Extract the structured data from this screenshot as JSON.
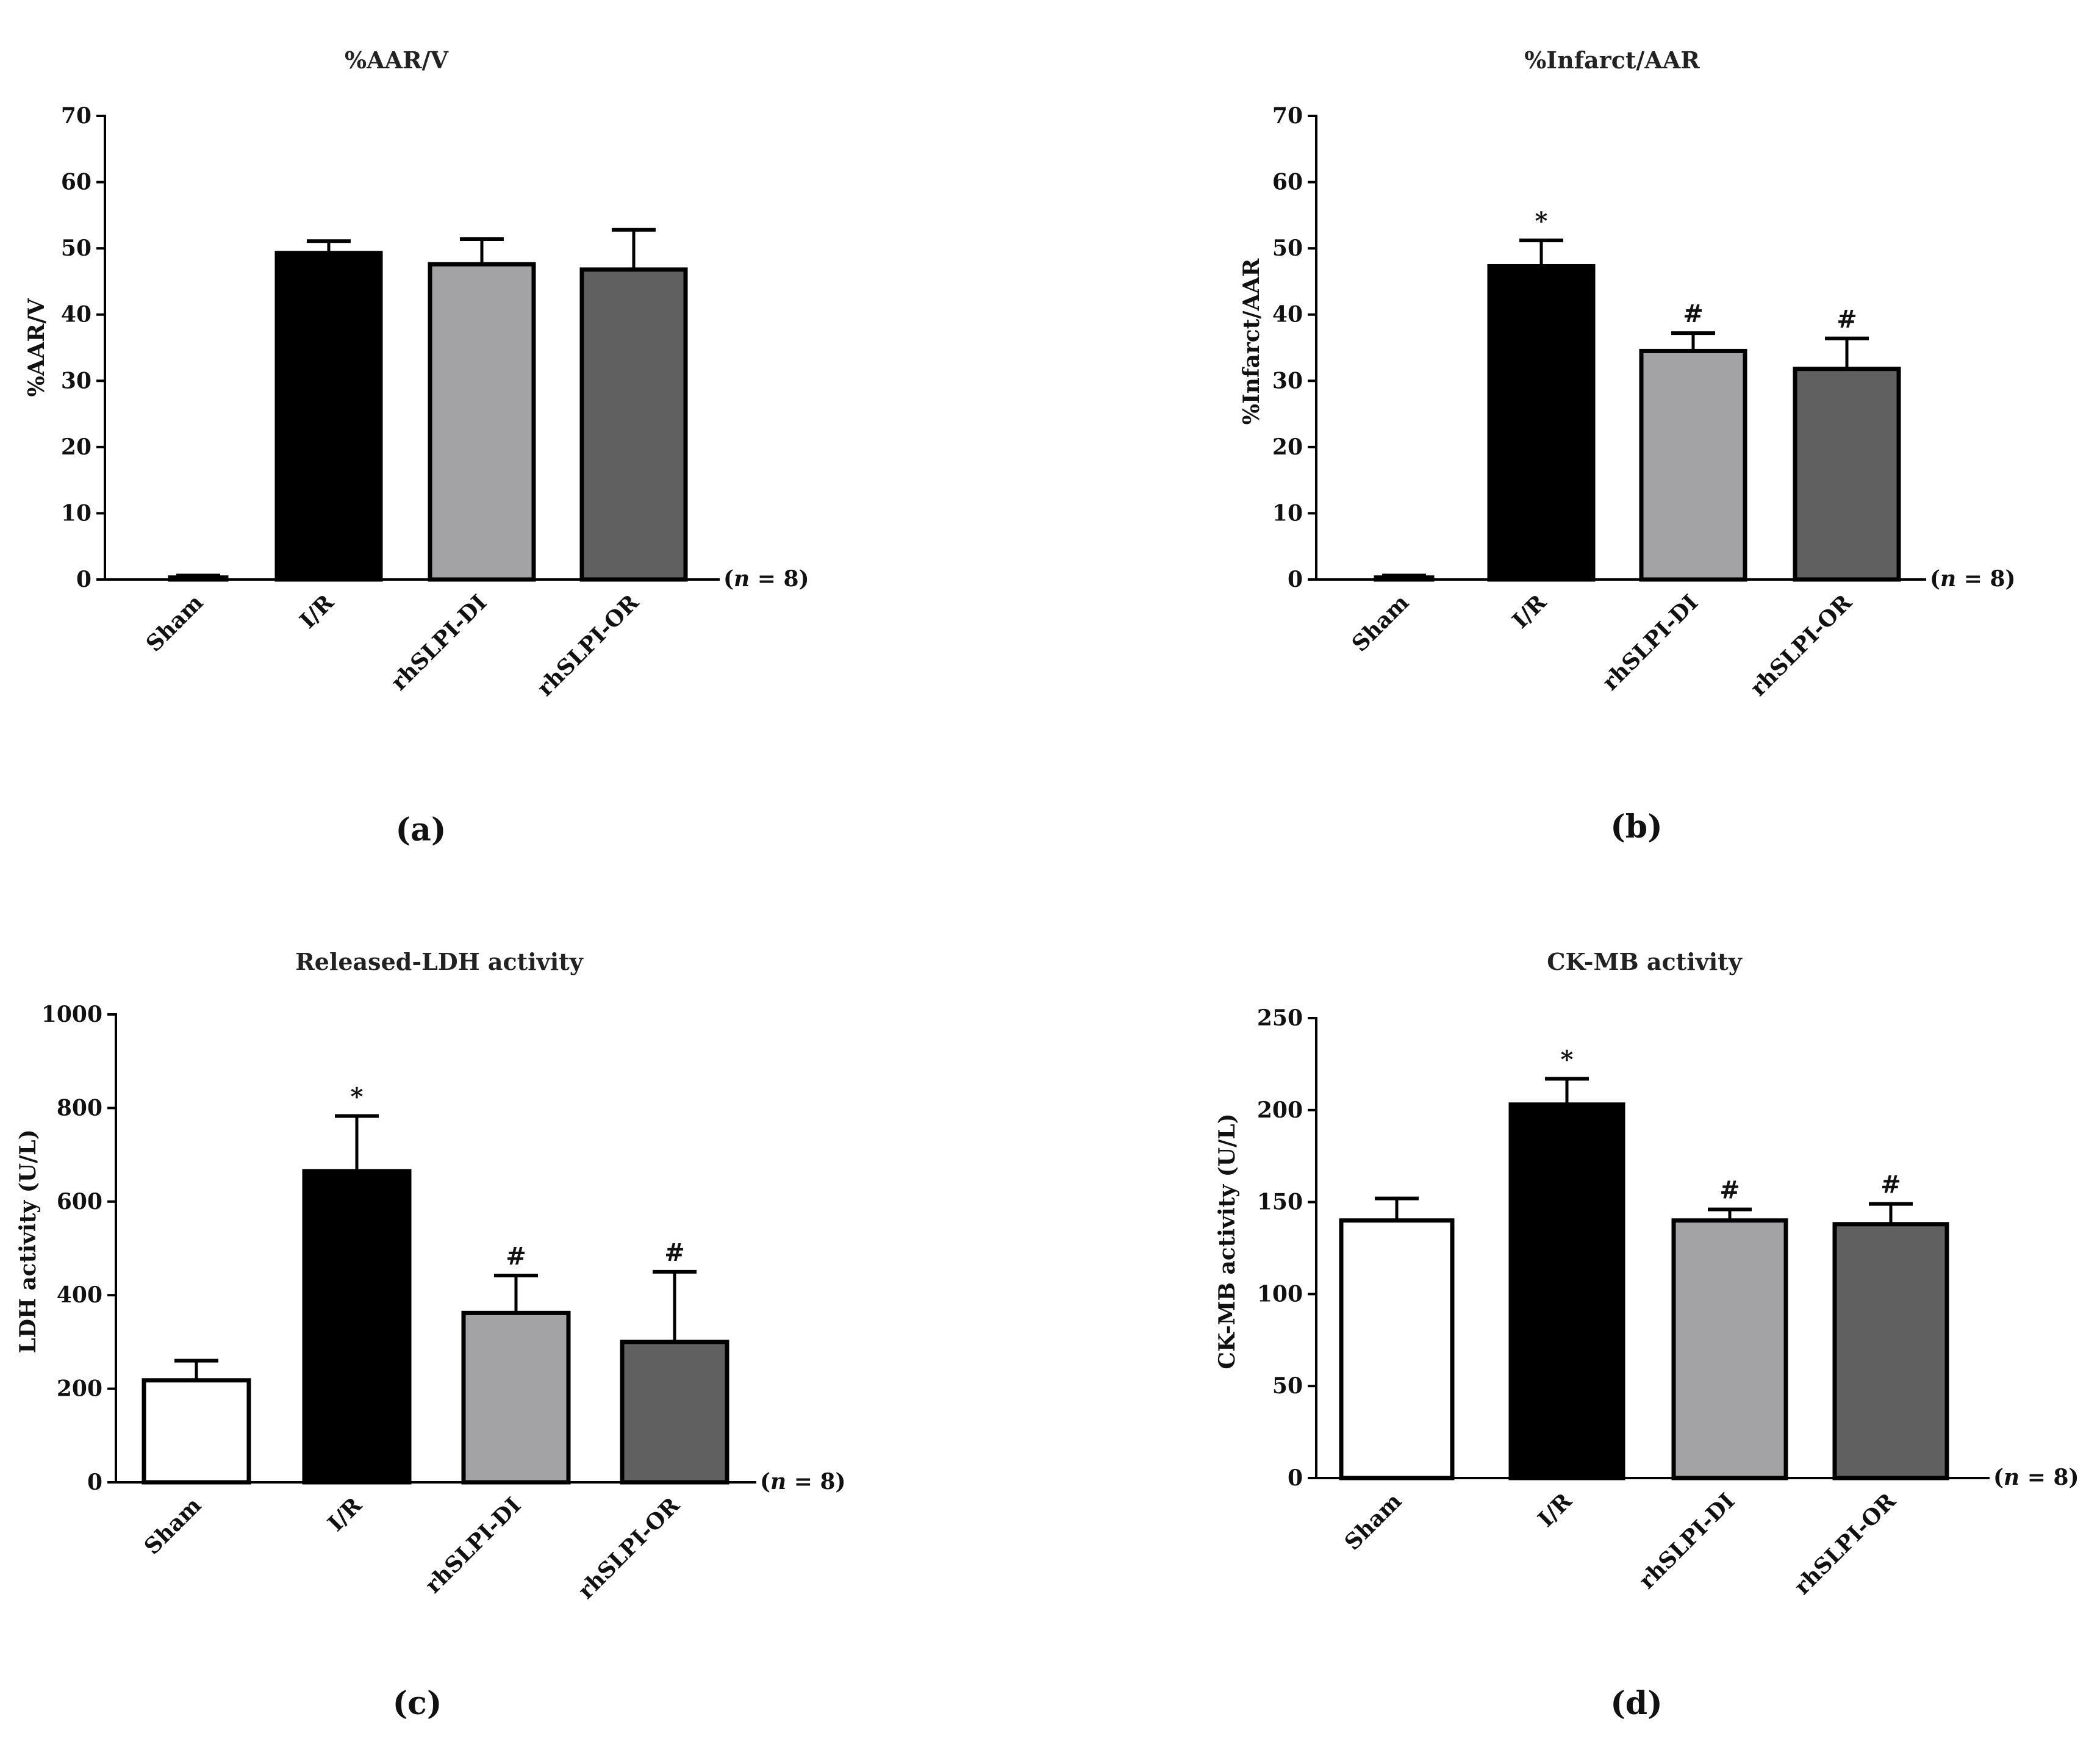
{
  "chart_data": [
    {
      "type": "bar",
      "panel_label": "(a)",
      "title": "%AAR/V",
      "ylabel": "%AAR/V",
      "xlabel": "",
      "n_label": "(n = 8)",
      "ylim": [
        0,
        70
      ],
      "yticks": [
        0,
        10,
        20,
        30,
        40,
        50,
        60,
        70
      ],
      "categories": [
        "Sham",
        "I/R",
        "rhSLPI-DI",
        "rhSLPI-OR"
      ],
      "values": [
        0.3,
        49.3,
        47.6,
        46.8
      ],
      "errors": [
        0.3,
        1.8,
        3.8,
        6.0
      ],
      "significance": [
        "",
        "",
        "",
        ""
      ],
      "colors": [
        "#ffffff",
        "#000000",
        "#a3a3a6",
        "#606060"
      ]
    },
    {
      "type": "bar",
      "panel_label": "(b)",
      "title": "%Infarct/AAR",
      "ylabel": "%Infarct/AAR",
      "xlabel": "",
      "n_label": "(n = 8)",
      "ylim": [
        0,
        70
      ],
      "yticks": [
        0,
        10,
        20,
        30,
        40,
        50,
        60,
        70
      ],
      "categories": [
        "Sham",
        "I/R",
        "rhSLPI-DI",
        "rhSLPI-OR"
      ],
      "values": [
        0.3,
        47.3,
        34.5,
        31.8
      ],
      "errors": [
        0.3,
        3.9,
        2.7,
        4.6
      ],
      "significance": [
        "",
        "*",
        "#",
        "#"
      ],
      "colors": [
        "#ffffff",
        "#000000",
        "#a3a3a6",
        "#606060"
      ]
    },
    {
      "type": "bar",
      "panel_label": "(c)",
      "title": "Released-LDH activity",
      "ylabel": "LDH activity (U/L)",
      "xlabel": "",
      "n_label": "(n = 8)",
      "ylim": [
        0,
        1000
      ],
      "yticks": [
        0,
        200,
        400,
        600,
        800,
        1000
      ],
      "categories": [
        "Sham",
        "I/R",
        "rhSLPI-DI",
        "rhSLPI-OR"
      ],
      "values": [
        218,
        665,
        362,
        300
      ],
      "errors": [
        42,
        118,
        80,
        150
      ],
      "significance": [
        "",
        "*",
        "#",
        "#"
      ],
      "colors": [
        "#ffffff",
        "#000000",
        "#a3a3a6",
        "#606060"
      ]
    },
    {
      "type": "bar",
      "panel_label": "(d)",
      "title": "CK-MB activity",
      "ylabel": "CK-MB activity (U/L)",
      "xlabel": "",
      "n_label": "(n = 8)",
      "ylim": [
        0,
        250
      ],
      "yticks": [
        0,
        50,
        100,
        150,
        200,
        250
      ],
      "categories": [
        "Sham",
        "I/R",
        "rhSLPI-DI",
        "rhSLPI-OR"
      ],
      "values": [
        140,
        203,
        140,
        138
      ],
      "errors": [
        12,
        14,
        6,
        11
      ],
      "significance": [
        "",
        "*",
        "#",
        "#"
      ],
      "colors": [
        "#ffffff",
        "#000000",
        "#a3a3a6",
        "#606060"
      ]
    }
  ]
}
